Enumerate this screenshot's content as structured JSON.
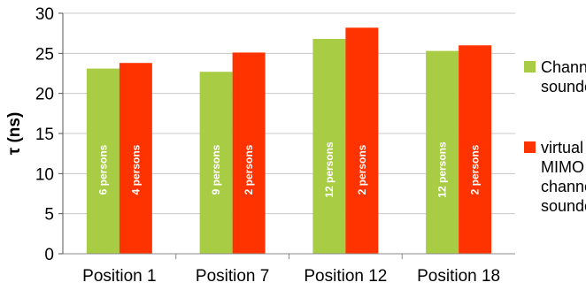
{
  "chart_data": {
    "type": "bar",
    "ylabel": "τ (ns)",
    "xlabel": "",
    "ylim": [
      0,
      30
    ],
    "yticks": [
      0,
      5,
      10,
      15,
      20,
      25,
      30
    ],
    "legend_position": "right",
    "categories": [
      "Position 1",
      "Position 7",
      "Position 12",
      "Position 18"
    ],
    "series": [
      {
        "name": "Channel sounder",
        "legend_lines": [
          "Channel",
          "sounder"
        ],
        "color": "#a9cc45",
        "values": [
          23.1,
          22.7,
          26.8,
          25.3
        ],
        "bar_labels": [
          "6 persons",
          "9 persons",
          "12 persons",
          "12 persons"
        ]
      },
      {
        "name": "virtual MIMO channel sounder",
        "legend_lines": [
          "virtual",
          "MIMO",
          "channel",
          "sounder"
        ],
        "color": "#ff3300",
        "values": [
          23.8,
          25.1,
          28.2,
          26.0
        ],
        "bar_labels": [
          "4 persons",
          "2 persons",
          "2 persons",
          "2 persons"
        ]
      }
    ]
  }
}
